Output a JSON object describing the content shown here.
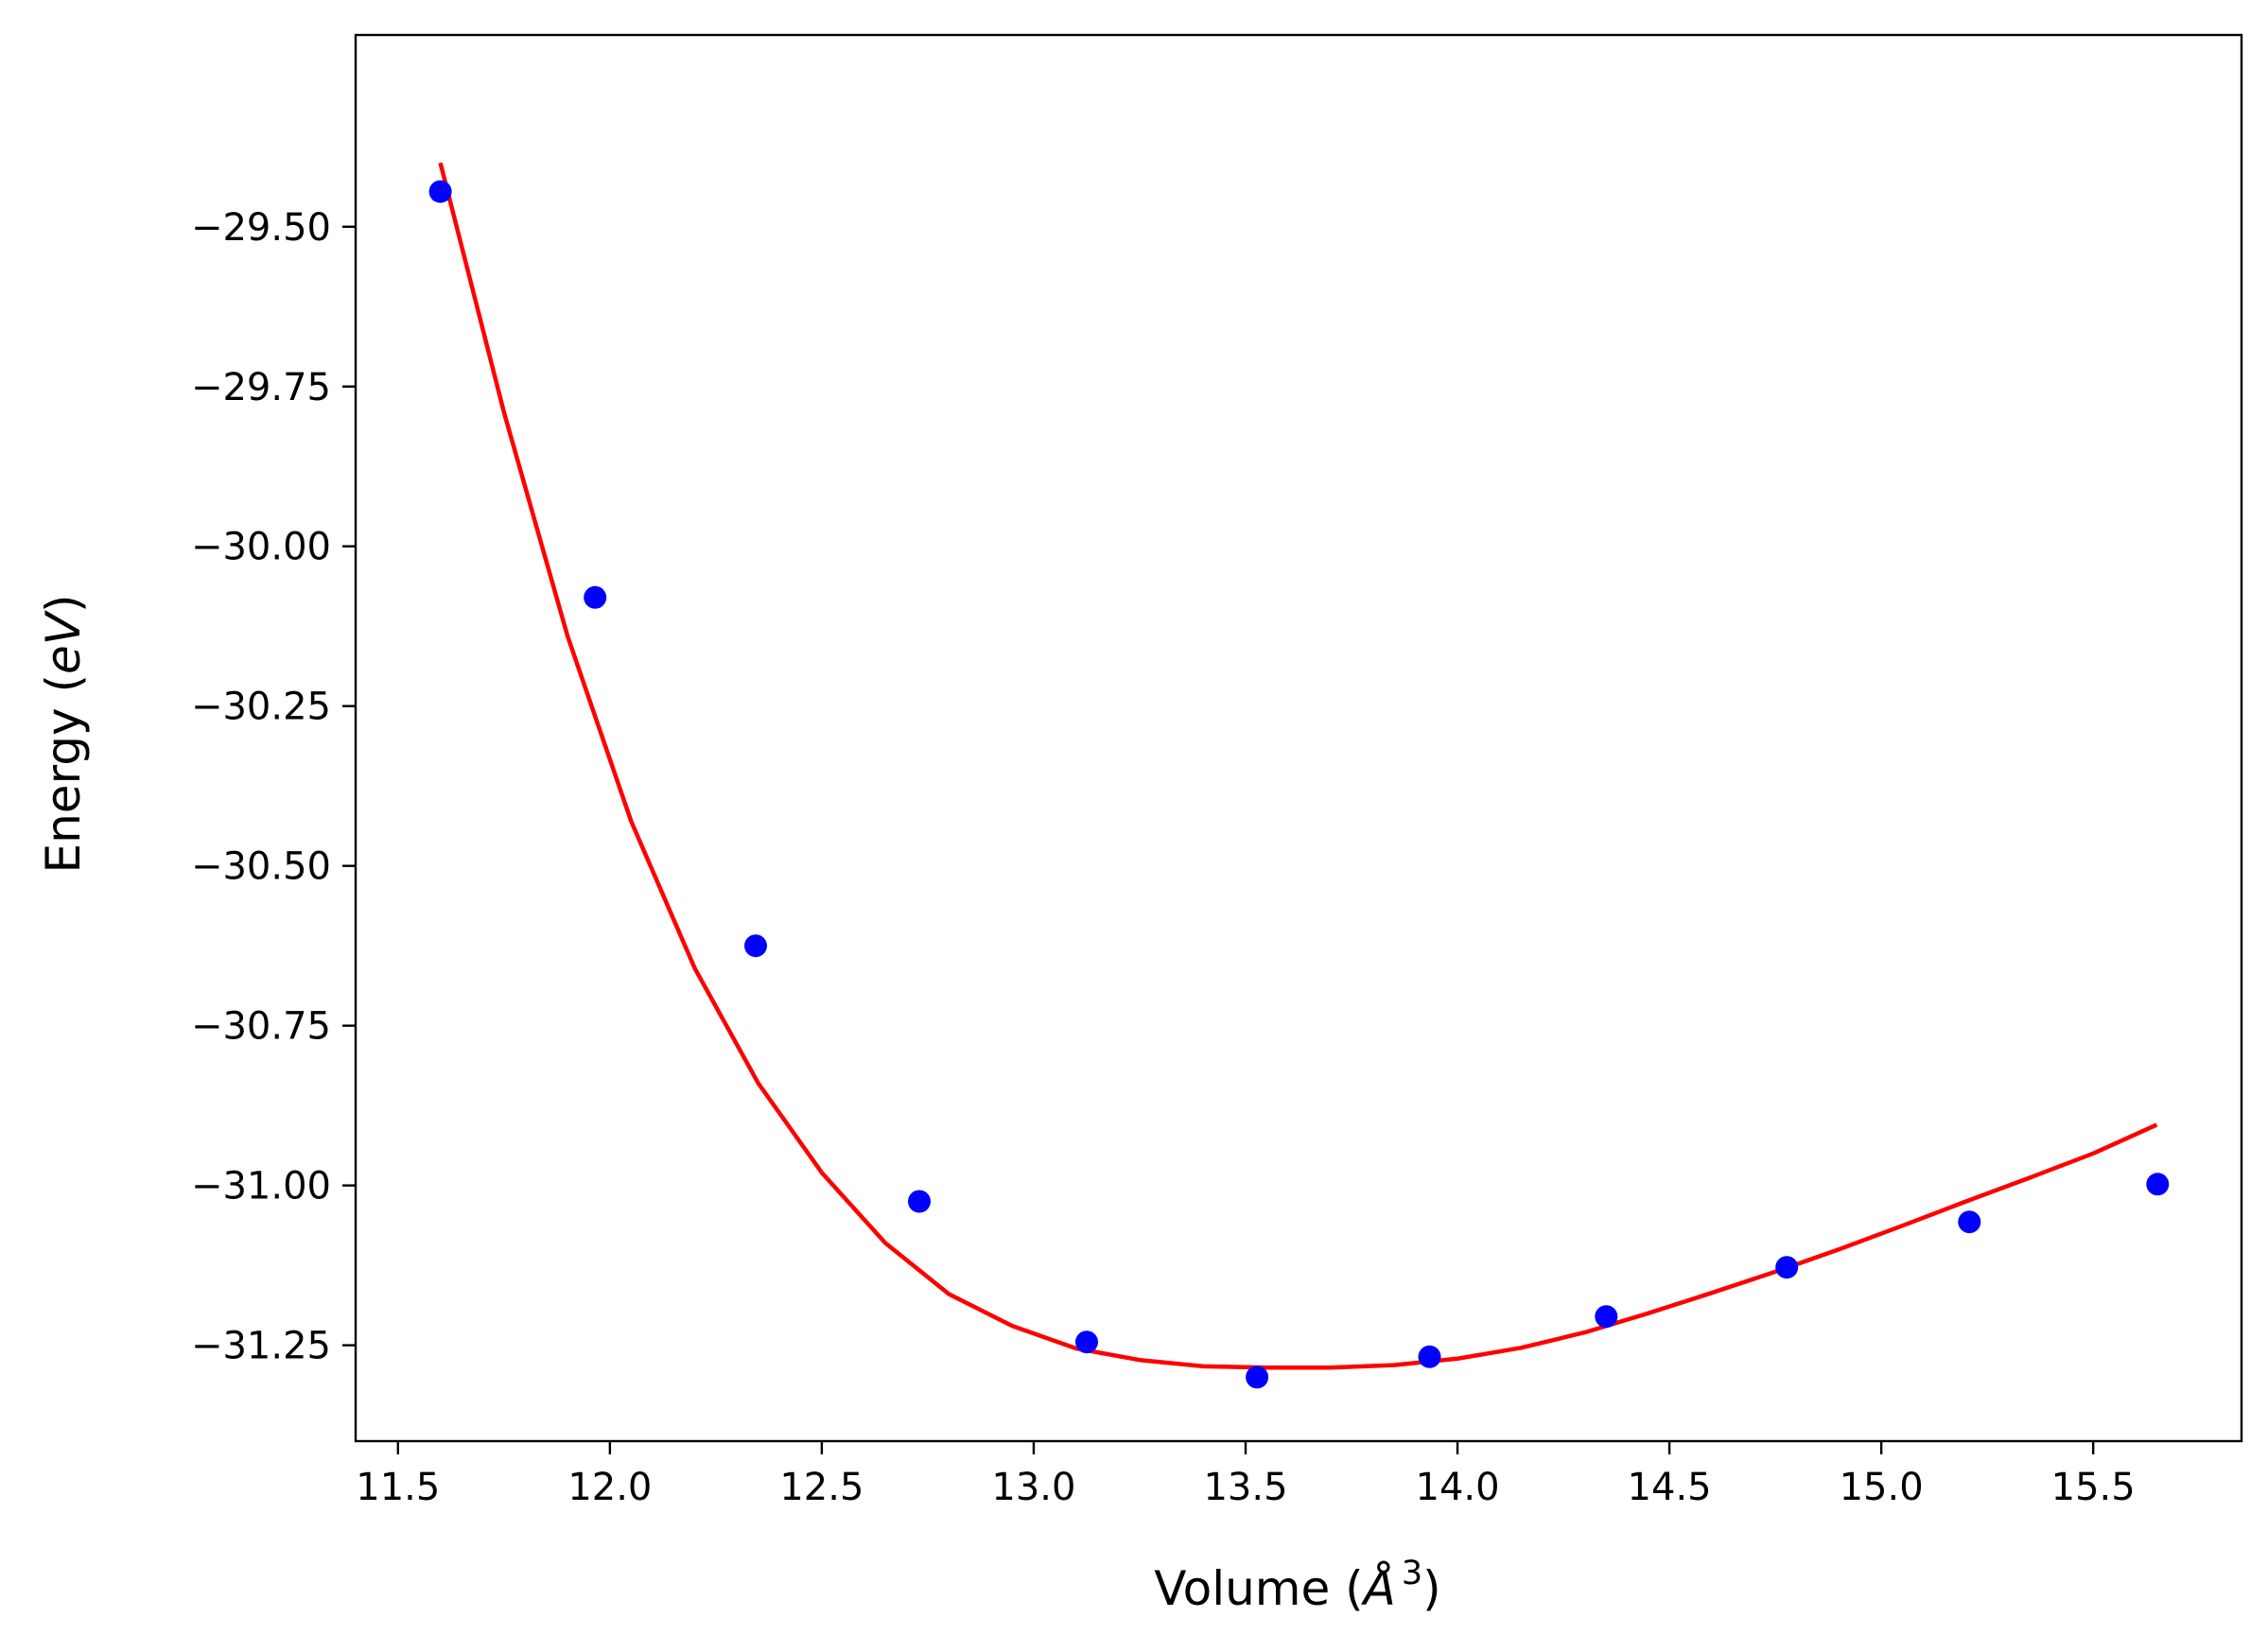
{
  "chart_data": {
    "type": "scatter",
    "xlabel_text": "Volume (",
    "xlabel_unit": "Å",
    "xlabel_exp": "3",
    "xlabel_close": ")",
    "ylabel_text": "Energy (",
    "ylabel_unit": "eV",
    "ylabel_close": ")",
    "xlim": [
      11.4,
      15.85
    ],
    "ylim": [
      -31.4,
      -29.2
    ],
    "xticks": [
      11.5,
      12.0,
      12.5,
      13.0,
      13.5,
      14.0,
      14.5,
      15.0,
      15.5
    ],
    "xtick_labels": [
      "11.5",
      "12.0",
      "12.5",
      "13.0",
      "13.5",
      "14.0",
      "14.5",
      "15.0",
      "15.5"
    ],
    "yticks": [
      -29.5,
      -29.75,
      -30.0,
      -30.25,
      -30.5,
      -30.75,
      -31.0,
      -31.25
    ],
    "ytick_labels": [
      "−29.50",
      "−29.75",
      "−30.00",
      "−30.25",
      "−30.50",
      "−30.75",
      "−31.00",
      "−31.25"
    ],
    "grid": false,
    "series": [
      {
        "kind": "points",
        "color": "#0000ff",
        "x": [
          11.6,
          11.965,
          12.344,
          12.73,
          13.125,
          13.527,
          13.934,
          14.351,
          14.777,
          15.208,
          15.652
        ],
        "y": [
          -29.445,
          -30.08,
          -30.625,
          -31.025,
          -31.245,
          -31.3,
          -31.268,
          -31.205,
          -31.128,
          -31.057,
          -30.998
        ]
      },
      {
        "kind": "line",
        "color": "#ff0000",
        "x": [
          11.6,
          11.75,
          11.9,
          12.05,
          12.2,
          12.35,
          12.5,
          12.65,
          12.8,
          12.95,
          13.1,
          13.25,
          13.4,
          13.55,
          13.7,
          13.85,
          14.0,
          14.15,
          14.3,
          14.45,
          14.6,
          14.75,
          14.9,
          15.05,
          15.2,
          15.35,
          15.5,
          15.65
        ],
        "y": [
          -29.4,
          -29.79,
          -30.14,
          -30.43,
          -30.66,
          -30.84,
          -30.98,
          -31.09,
          -31.17,
          -31.22,
          -31.255,
          -31.273,
          -31.283,
          -31.285,
          -31.285,
          -31.281,
          -31.271,
          -31.254,
          -31.23,
          -31.2,
          -31.168,
          -31.135,
          -31.1,
          -31.063,
          -31.025,
          -30.988,
          -30.95,
          -30.905
        ]
      }
    ]
  }
}
